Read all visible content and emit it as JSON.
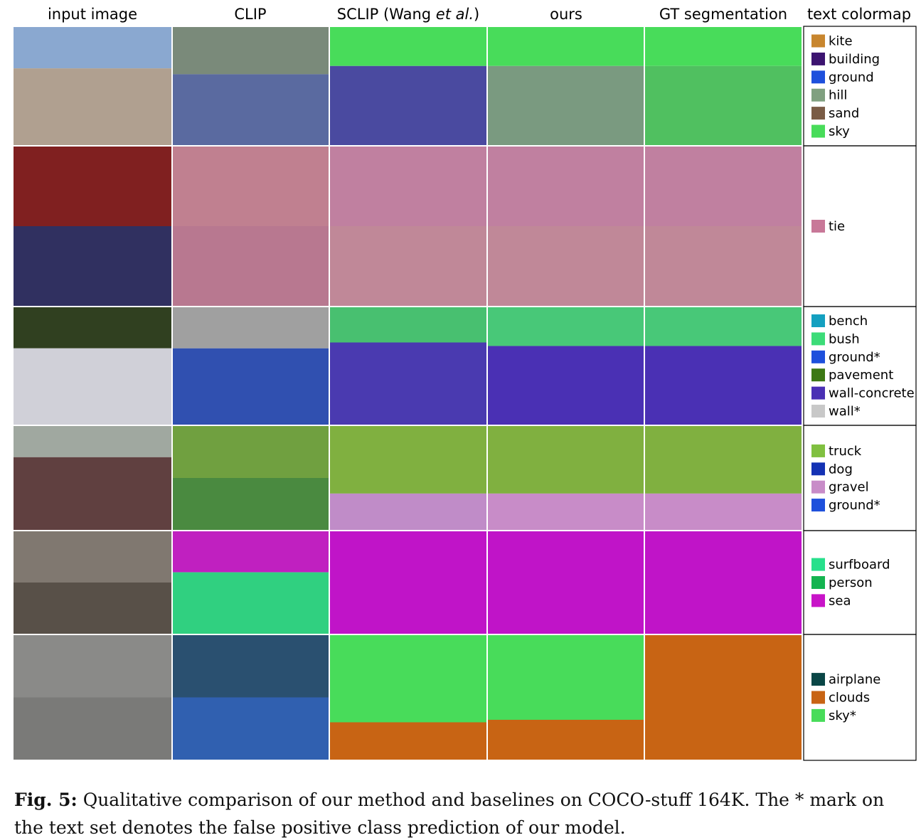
{
  "figure": {
    "columns": [
      "input image",
      "CLIP",
      {
        "before": "SCLIP (Wang ",
        "italic": "et al.",
        "after": ")"
      },
      "ours",
      "GT segmentation",
      "text colormap"
    ],
    "rows": [
      {
        "legend": [
          {
            "name": "kite",
            "color": "#c8862e"
          },
          {
            "name": "building",
            "color": "#3c1470"
          },
          {
            "name": "ground",
            "color": "#1e50dc"
          },
          {
            "name": "hill",
            "color": "#80a080"
          },
          {
            "name": "sand",
            "color": "#7a5c46"
          },
          {
            "name": "sky",
            "color": "#48dc5a"
          }
        ]
      },
      {
        "legend": [
          {
            "name": "tie",
            "color": "#c87898"
          }
        ]
      },
      {
        "legend": [
          {
            "name": "bench",
            "color": "#14a0c0"
          },
          {
            "name": "bush",
            "color": "#3cdc78"
          },
          {
            "name": "ground*",
            "color": "#1e50dc"
          },
          {
            "name": "pavement",
            "color": "#3c7814"
          },
          {
            "name": "wall-concrete",
            "color": "#4a30b4"
          },
          {
            "name": "wall*",
            "color": "#c8c8c8"
          }
        ]
      },
      {
        "legend": [
          {
            "name": "truck",
            "color": "#80c040"
          },
          {
            "name": "dog",
            "color": "#1432b4"
          },
          {
            "name": "gravel",
            "color": "#c88cc8"
          },
          {
            "name": "ground*",
            "color": "#1e50dc"
          }
        ]
      },
      {
        "legend": [
          {
            "name": "surfboard",
            "color": "#28e08c"
          },
          {
            "name": "person",
            "color": "#14b450"
          },
          {
            "name": "sea",
            "color": "#c814c8"
          }
        ]
      },
      {
        "legend": [
          {
            "name": "airplane",
            "color": "#0a4646"
          },
          {
            "name": "clouds",
            "color": "#c86414"
          },
          {
            "name": "sky*",
            "color": "#48dc5a"
          }
        ]
      }
    ],
    "caption": {
      "label": "Fig. 5:",
      "text": " Qualitative comparison of our method and baselines on COCO-stuff 164K. The * mark on the text set denotes the false positive class prediction of our model."
    }
  }
}
